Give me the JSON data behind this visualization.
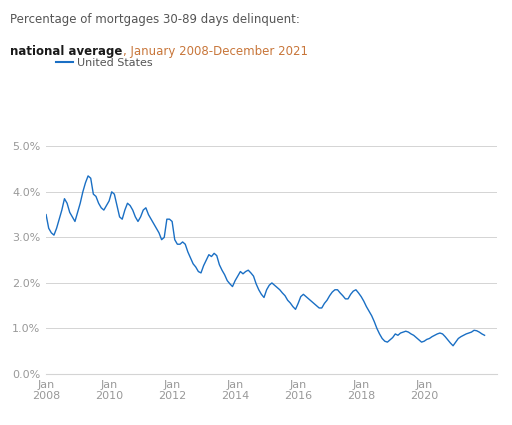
{
  "title_line1": "Percentage of mortgages 30-89 days delinquent:",
  "title_bold": "national average",
  "title_date": ", January 2008-December 2021",
  "legend_label": "United States",
  "line_color": "#1a6fc4",
  "background_color": "#ffffff",
  "grid_color": "#d4d4d4",
  "title_gray": "#555555",
  "bold_color": "#1a1a1a",
  "date_color": "#c8763a",
  "tick_color": "#999999",
  "ylim": [
    0.0,
    0.056
  ],
  "yticks": [
    0.0,
    0.01,
    0.02,
    0.03,
    0.04,
    0.05
  ],
  "ytick_labels": [
    "0.0%",
    "1.0%",
    "2.0%",
    "3.0%",
    "4.0%",
    "5.0%"
  ],
  "xtick_years": [
    2008,
    2010,
    2012,
    2014,
    2016,
    2018,
    2020
  ],
  "values": [
    0.035,
    0.032,
    0.031,
    0.0305,
    0.032,
    0.034,
    0.036,
    0.0385,
    0.0375,
    0.0355,
    0.0345,
    0.0335,
    0.0355,
    0.0375,
    0.04,
    0.042,
    0.0435,
    0.043,
    0.0395,
    0.039,
    0.0375,
    0.0365,
    0.036,
    0.037,
    0.038,
    0.04,
    0.0395,
    0.037,
    0.0345,
    0.034,
    0.036,
    0.0375,
    0.037,
    0.036,
    0.0345,
    0.0335,
    0.0345,
    0.036,
    0.0365,
    0.035,
    0.034,
    0.033,
    0.032,
    0.031,
    0.0295,
    0.03,
    0.034,
    0.034,
    0.0335,
    0.0295,
    0.0285,
    0.0285,
    0.029,
    0.0285,
    0.0268,
    0.0255,
    0.0242,
    0.0235,
    0.0225,
    0.0222,
    0.0238,
    0.025,
    0.0262,
    0.0258,
    0.0265,
    0.026,
    0.024,
    0.0228,
    0.0218,
    0.0205,
    0.0198,
    0.0192,
    0.0205,
    0.0215,
    0.0225,
    0.022,
    0.0225,
    0.0228,
    0.0222,
    0.0215,
    0.0198,
    0.0185,
    0.0175,
    0.0168,
    0.0185,
    0.0195,
    0.02,
    0.0195,
    0.019,
    0.0185,
    0.0178,
    0.0172,
    0.0162,
    0.0156,
    0.0148,
    0.0142,
    0.0155,
    0.017,
    0.0175,
    0.017,
    0.0165,
    0.016,
    0.0155,
    0.015,
    0.0145,
    0.0145,
    0.0155,
    0.0162,
    0.0172,
    0.018,
    0.0185,
    0.0185,
    0.0178,
    0.0172,
    0.0165,
    0.0165,
    0.0175,
    0.0182,
    0.0185,
    0.0178,
    0.017,
    0.016,
    0.0148,
    0.0138,
    0.0128,
    0.0115,
    0.01,
    0.0088,
    0.0078,
    0.0072,
    0.007,
    0.0075,
    0.008,
    0.0088,
    0.0085,
    0.009,
    0.0092,
    0.0094,
    0.0092,
    0.0088,
    0.0085,
    0.008,
    0.0075,
    0.007,
    0.0072,
    0.0076,
    0.0078,
    0.0082,
    0.0085,
    0.0088,
    0.009,
    0.0088,
    0.0082,
    0.0075,
    0.0068,
    0.0062,
    0.007,
    0.0078,
    0.0082,
    0.0085,
    0.0088,
    0.009,
    0.0092,
    0.0096,
    0.0095,
    0.0092,
    0.0088,
    0.0085
  ]
}
